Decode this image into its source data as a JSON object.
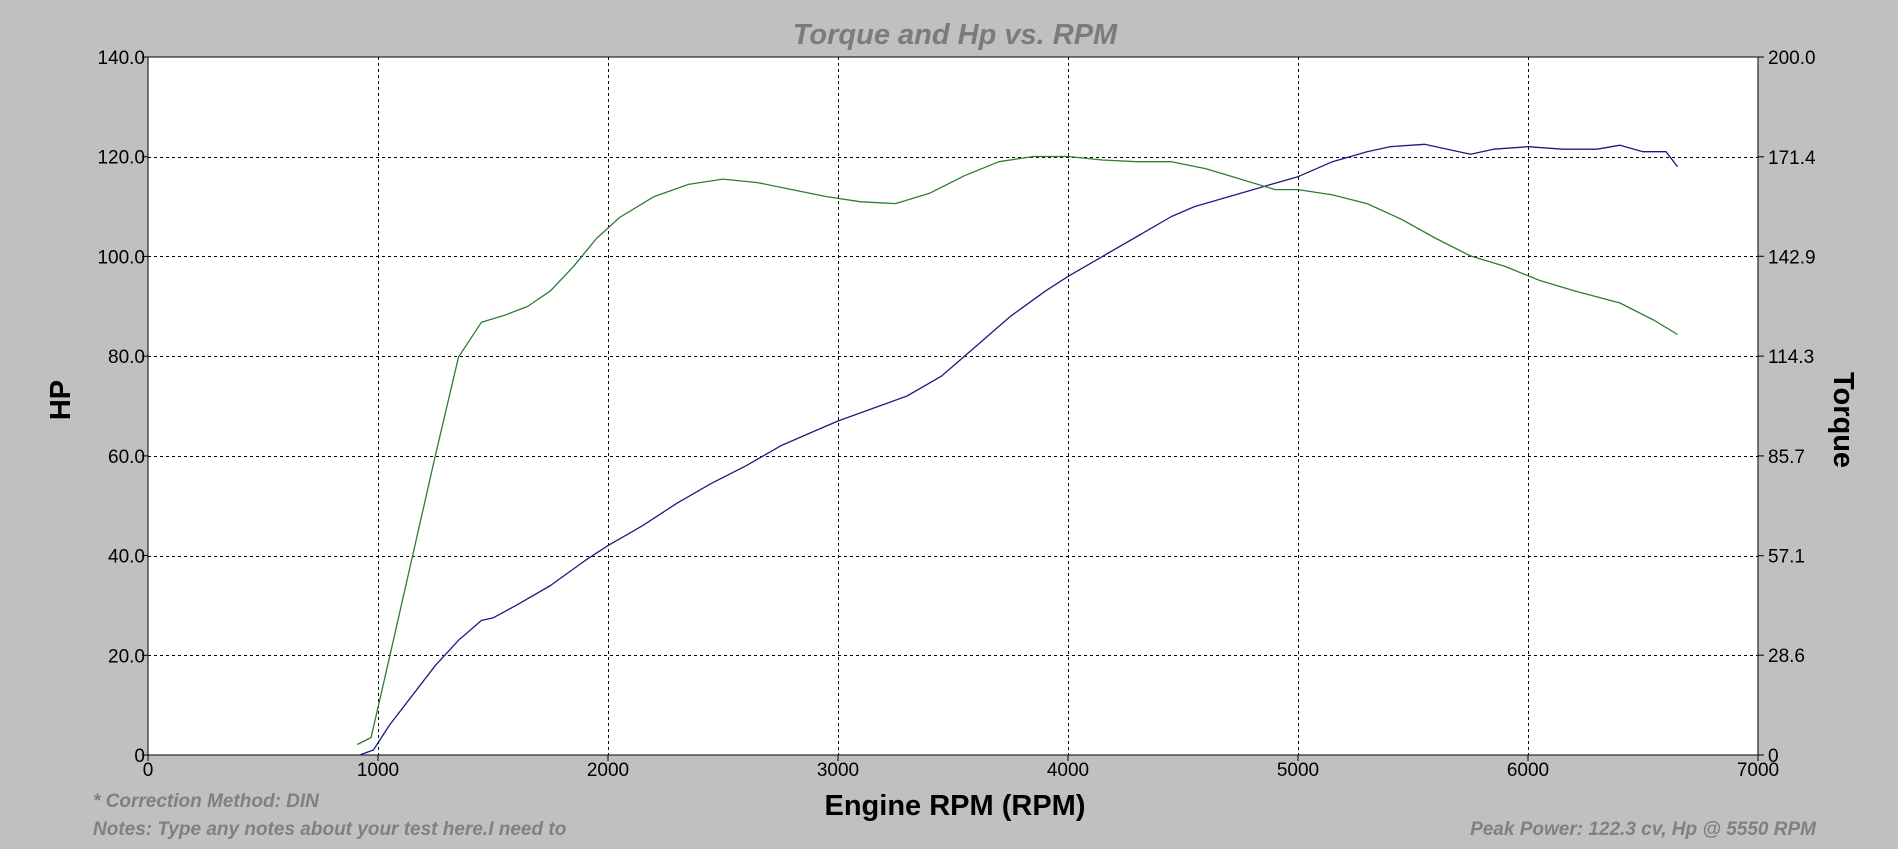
{
  "chart_data": {
    "type": "line",
    "title": "Torque and Hp vs. RPM",
    "xlabel": "Engine RPM (RPM)",
    "ylabel": "HP",
    "y2label": "Torque",
    "xlim": [
      0,
      7000
    ],
    "ylim": [
      0,
      140
    ],
    "y2lim": [
      0,
      200
    ],
    "x_ticks": [
      0,
      1000,
      2000,
      3000,
      4000,
      5000,
      6000,
      7000
    ],
    "x_tick_labels": [
      "0",
      "1000",
      "2000",
      "3000",
      "4000",
      "5000",
      "6000",
      "7000"
    ],
    "y_ticks": [
      0,
      20,
      40,
      60,
      80,
      100,
      120,
      140
    ],
    "y_tick_labels": [
      "0",
      "20.0",
      "40.0",
      "60.0",
      "80.0",
      "100.0",
      "120.0",
      "140.0"
    ],
    "y2_ticks": [
      0,
      28.6,
      57.1,
      85.7,
      114.3,
      142.9,
      171.4,
      200
    ],
    "y2_tick_labels": [
      "0",
      "28.6",
      "57.1",
      "85.7",
      "114.3",
      "142.9",
      "171.4",
      "200.0"
    ],
    "grid": true,
    "series": [
      {
        "axis": "left",
        "color": "#1c1c80",
        "x": [
          920,
          980,
          1050,
          1150,
          1250,
          1350,
          1450,
          1500,
          1600,
          1750,
          1900,
          2000,
          2150,
          2300,
          2450,
          2600,
          2750,
          2900,
          3000,
          3150,
          3300,
          3450,
          3600,
          3750,
          3900,
          4000,
          4150,
          4300,
          4450,
          4550,
          4700,
          4850,
          5000,
          5150,
          5300,
          5400,
          5550,
          5650,
          5750,
          5850,
          6000,
          6150,
          6300,
          6400,
          6500,
          6600,
          6650
        ],
        "y": [
          0,
          1,
          6,
          12,
          18,
          23,
          27,
          27.5,
          30,
          34,
          39,
          42,
          46,
          50.5,
          54.5,
          58,
          62,
          65,
          67,
          69.5,
          72,
          76,
          82,
          88,
          93,
          96,
          100,
          104,
          108,
          110,
          112,
          114,
          116,
          119,
          121,
          122,
          122.5,
          121.5,
          120.5,
          121.5,
          122,
          121.5,
          121.5,
          122.3,
          121,
          121,
          118
        ]
      },
      {
        "axis": "right",
        "color": "#2e7d32",
        "x": [
          910,
          970,
          1050,
          1150,
          1250,
          1350,
          1450,
          1550,
          1650,
          1750,
          1850,
          1950,
          2050,
          2200,
          2350,
          2500,
          2650,
          2800,
          2950,
          3100,
          3250,
          3400,
          3550,
          3700,
          3850,
          4000,
          4150,
          4300,
          4450,
          4600,
          4750,
          4900,
          5000,
          5150,
          5300,
          5450,
          5600,
          5750,
          5900,
          6050,
          6200,
          6400,
          6550,
          6650
        ],
        "y": [
          3,
          5,
          28,
          57,
          86,
          114,
          124,
          126,
          128.5,
          133,
          140,
          148,
          154,
          160,
          163.5,
          165,
          164,
          162,
          160,
          158.5,
          158,
          161,
          166,
          170,
          171.5,
          171.5,
          170.5,
          170,
          170,
          168,
          165,
          162,
          162,
          160.5,
          158,
          153.5,
          148,
          143,
          140,
          136,
          133,
          129.5,
          124.5,
          120.5
        ]
      }
    ]
  },
  "footer": {
    "correction": "* Correction Method: DIN",
    "notes": "Notes: Type any notes about your test here.I need to",
    "peak": "Peak Power: 122.3 cv, Hp @ 5550 RPM"
  }
}
